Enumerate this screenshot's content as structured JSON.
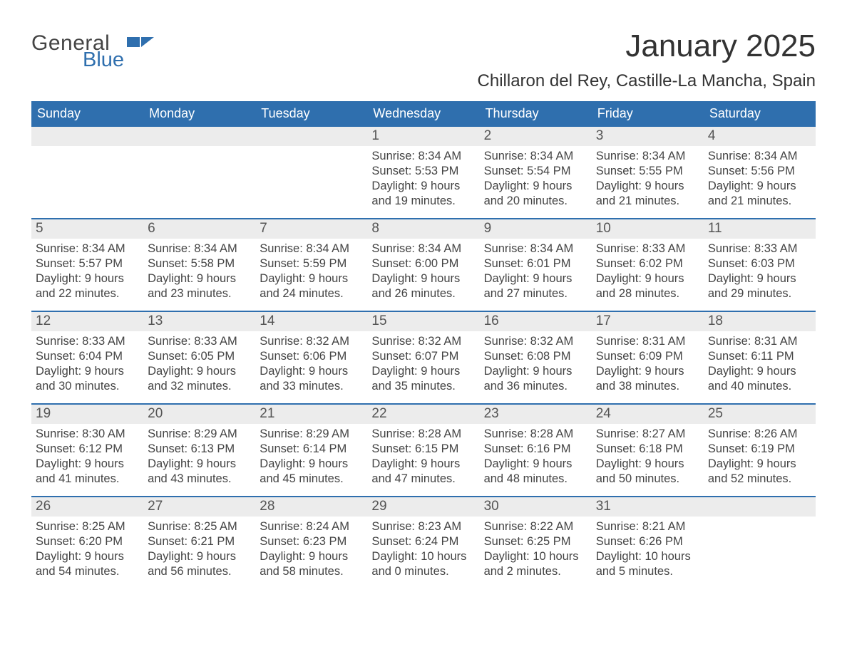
{
  "brand": {
    "general": "General",
    "blue": "Blue",
    "general_color": "#444444",
    "blue_color": "#2f6fae",
    "flag_color": "#2f6fae"
  },
  "title": "January 2025",
  "location": "Chillaron del Rey, Castille-La Mancha, Spain",
  "colors": {
    "header_bg": "#2f6fae",
    "header_text": "#ffffff",
    "daynum_bg": "#ececec",
    "daynum_text": "#555555",
    "body_text": "#444444",
    "row_border": "#2f6fae",
    "page_bg": "#ffffff"
  },
  "weekdays": [
    "Sunday",
    "Monday",
    "Tuesday",
    "Wednesday",
    "Thursday",
    "Friday",
    "Saturday"
  ],
  "weeks": [
    [
      {
        "n": "",
        "sunrise": "",
        "sunset": "",
        "daylight": ""
      },
      {
        "n": "",
        "sunrise": "",
        "sunset": "",
        "daylight": ""
      },
      {
        "n": "",
        "sunrise": "",
        "sunset": "",
        "daylight": ""
      },
      {
        "n": "1",
        "sunrise": "Sunrise: 8:34 AM",
        "sunset": "Sunset: 5:53 PM",
        "daylight": "Daylight: 9 hours and 19 minutes."
      },
      {
        "n": "2",
        "sunrise": "Sunrise: 8:34 AM",
        "sunset": "Sunset: 5:54 PM",
        "daylight": "Daylight: 9 hours and 20 minutes."
      },
      {
        "n": "3",
        "sunrise": "Sunrise: 8:34 AM",
        "sunset": "Sunset: 5:55 PM",
        "daylight": "Daylight: 9 hours and 21 minutes."
      },
      {
        "n": "4",
        "sunrise": "Sunrise: 8:34 AM",
        "sunset": "Sunset: 5:56 PM",
        "daylight": "Daylight: 9 hours and 21 minutes."
      }
    ],
    [
      {
        "n": "5",
        "sunrise": "Sunrise: 8:34 AM",
        "sunset": "Sunset: 5:57 PM",
        "daylight": "Daylight: 9 hours and 22 minutes."
      },
      {
        "n": "6",
        "sunrise": "Sunrise: 8:34 AM",
        "sunset": "Sunset: 5:58 PM",
        "daylight": "Daylight: 9 hours and 23 minutes."
      },
      {
        "n": "7",
        "sunrise": "Sunrise: 8:34 AM",
        "sunset": "Sunset: 5:59 PM",
        "daylight": "Daylight: 9 hours and 24 minutes."
      },
      {
        "n": "8",
        "sunrise": "Sunrise: 8:34 AM",
        "sunset": "Sunset: 6:00 PM",
        "daylight": "Daylight: 9 hours and 26 minutes."
      },
      {
        "n": "9",
        "sunrise": "Sunrise: 8:34 AM",
        "sunset": "Sunset: 6:01 PM",
        "daylight": "Daylight: 9 hours and 27 minutes."
      },
      {
        "n": "10",
        "sunrise": "Sunrise: 8:33 AM",
        "sunset": "Sunset: 6:02 PM",
        "daylight": "Daylight: 9 hours and 28 minutes."
      },
      {
        "n": "11",
        "sunrise": "Sunrise: 8:33 AM",
        "sunset": "Sunset: 6:03 PM",
        "daylight": "Daylight: 9 hours and 29 minutes."
      }
    ],
    [
      {
        "n": "12",
        "sunrise": "Sunrise: 8:33 AM",
        "sunset": "Sunset: 6:04 PM",
        "daylight": "Daylight: 9 hours and 30 minutes."
      },
      {
        "n": "13",
        "sunrise": "Sunrise: 8:33 AM",
        "sunset": "Sunset: 6:05 PM",
        "daylight": "Daylight: 9 hours and 32 minutes."
      },
      {
        "n": "14",
        "sunrise": "Sunrise: 8:32 AM",
        "sunset": "Sunset: 6:06 PM",
        "daylight": "Daylight: 9 hours and 33 minutes."
      },
      {
        "n": "15",
        "sunrise": "Sunrise: 8:32 AM",
        "sunset": "Sunset: 6:07 PM",
        "daylight": "Daylight: 9 hours and 35 minutes."
      },
      {
        "n": "16",
        "sunrise": "Sunrise: 8:32 AM",
        "sunset": "Sunset: 6:08 PM",
        "daylight": "Daylight: 9 hours and 36 minutes."
      },
      {
        "n": "17",
        "sunrise": "Sunrise: 8:31 AM",
        "sunset": "Sunset: 6:09 PM",
        "daylight": "Daylight: 9 hours and 38 minutes."
      },
      {
        "n": "18",
        "sunrise": "Sunrise: 8:31 AM",
        "sunset": "Sunset: 6:11 PM",
        "daylight": "Daylight: 9 hours and 40 minutes."
      }
    ],
    [
      {
        "n": "19",
        "sunrise": "Sunrise: 8:30 AM",
        "sunset": "Sunset: 6:12 PM",
        "daylight": "Daylight: 9 hours and 41 minutes."
      },
      {
        "n": "20",
        "sunrise": "Sunrise: 8:29 AM",
        "sunset": "Sunset: 6:13 PM",
        "daylight": "Daylight: 9 hours and 43 minutes."
      },
      {
        "n": "21",
        "sunrise": "Sunrise: 8:29 AM",
        "sunset": "Sunset: 6:14 PM",
        "daylight": "Daylight: 9 hours and 45 minutes."
      },
      {
        "n": "22",
        "sunrise": "Sunrise: 8:28 AM",
        "sunset": "Sunset: 6:15 PM",
        "daylight": "Daylight: 9 hours and 47 minutes."
      },
      {
        "n": "23",
        "sunrise": "Sunrise: 8:28 AM",
        "sunset": "Sunset: 6:16 PM",
        "daylight": "Daylight: 9 hours and 48 minutes."
      },
      {
        "n": "24",
        "sunrise": "Sunrise: 8:27 AM",
        "sunset": "Sunset: 6:18 PM",
        "daylight": "Daylight: 9 hours and 50 minutes."
      },
      {
        "n": "25",
        "sunrise": "Sunrise: 8:26 AM",
        "sunset": "Sunset: 6:19 PM",
        "daylight": "Daylight: 9 hours and 52 minutes."
      }
    ],
    [
      {
        "n": "26",
        "sunrise": "Sunrise: 8:25 AM",
        "sunset": "Sunset: 6:20 PM",
        "daylight": "Daylight: 9 hours and 54 minutes."
      },
      {
        "n": "27",
        "sunrise": "Sunrise: 8:25 AM",
        "sunset": "Sunset: 6:21 PM",
        "daylight": "Daylight: 9 hours and 56 minutes."
      },
      {
        "n": "28",
        "sunrise": "Sunrise: 8:24 AM",
        "sunset": "Sunset: 6:23 PM",
        "daylight": "Daylight: 9 hours and 58 minutes."
      },
      {
        "n": "29",
        "sunrise": "Sunrise: 8:23 AM",
        "sunset": "Sunset: 6:24 PM",
        "daylight": "Daylight: 10 hours and 0 minutes."
      },
      {
        "n": "30",
        "sunrise": "Sunrise: 8:22 AM",
        "sunset": "Sunset: 6:25 PM",
        "daylight": "Daylight: 10 hours and 2 minutes."
      },
      {
        "n": "31",
        "sunrise": "Sunrise: 8:21 AM",
        "sunset": "Sunset: 6:26 PM",
        "daylight": "Daylight: 10 hours and 5 minutes."
      },
      {
        "n": "",
        "sunrise": "",
        "sunset": "",
        "daylight": ""
      }
    ]
  ]
}
